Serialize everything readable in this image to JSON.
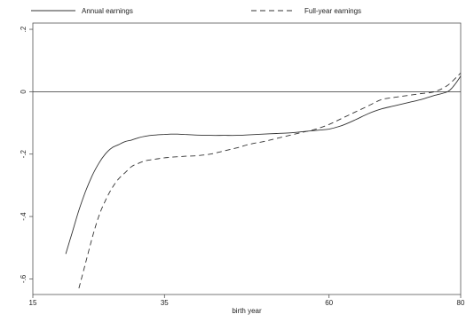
{
  "chart_data": {
    "type": "line",
    "title": "",
    "xlabel": "birth year",
    "ylabel": "",
    "xlim": [
      15,
      80
    ],
    "ylim": [
      -0.65,
      0.22
    ],
    "x_ticks": [
      15,
      35,
      60,
      80
    ],
    "y_ticks": [
      -0.6,
      -0.4,
      -0.2,
      0,
      0.2
    ],
    "x_tick_labels": [
      "15",
      "35",
      "60",
      "80"
    ],
    "y_tick_labels": [
      "-.6",
      "-.4",
      "-.2",
      "0",
      ".2"
    ],
    "reference_line_y": 0,
    "grid": false,
    "legend_position": "top",
    "series": [
      {
        "name": "Annual earnings",
        "dash": "solid",
        "color": "#333333",
        "x": [
          20,
          21,
          22,
          23,
          24,
          25,
          26,
          27,
          28,
          29,
          30,
          31,
          32,
          33,
          34,
          35,
          36,
          37,
          38,
          40,
          42,
          44,
          46,
          48,
          50,
          52,
          54,
          56,
          58,
          60,
          62,
          64,
          66,
          68,
          70,
          72,
          74,
          76,
          78,
          79,
          80
        ],
        "y": [
          -0.52,
          -0.45,
          -0.38,
          -0.32,
          -0.27,
          -0.23,
          -0.2,
          -0.18,
          -0.17,
          -0.16,
          -0.155,
          -0.148,
          -0.143,
          -0.14,
          -0.138,
          -0.137,
          -0.136,
          -0.136,
          -0.137,
          -0.139,
          -0.14,
          -0.14,
          -0.14,
          -0.138,
          -0.136,
          -0.134,
          -0.132,
          -0.128,
          -0.124,
          -0.12,
          -0.108,
          -0.09,
          -0.07,
          -0.055,
          -0.045,
          -0.035,
          -0.025,
          -0.012,
          0.0,
          0.02,
          0.05
        ]
      },
      {
        "name": "Full-year earnings",
        "dash": "dashed",
        "color": "#333333",
        "x": [
          22,
          23,
          24,
          25,
          26,
          27,
          28,
          29,
          30,
          31,
          32,
          33,
          34,
          35,
          36,
          38,
          40,
          42,
          44,
          46,
          48,
          50,
          52,
          54,
          56,
          58,
          60,
          62,
          64,
          66,
          68,
          70,
          72,
          74,
          76,
          78,
          80
        ],
        "y": [
          -0.63,
          -0.55,
          -0.47,
          -0.4,
          -0.35,
          -0.31,
          -0.28,
          -0.26,
          -0.24,
          -0.23,
          -0.222,
          -0.218,
          -0.215,
          -0.212,
          -0.21,
          -0.207,
          -0.205,
          -0.2,
          -0.19,
          -0.18,
          -0.168,
          -0.16,
          -0.15,
          -0.14,
          -0.13,
          -0.12,
          -0.105,
          -0.085,
          -0.065,
          -0.045,
          -0.025,
          -0.018,
          -0.012,
          -0.006,
          0.0,
          0.02,
          0.06
        ]
      }
    ]
  }
}
